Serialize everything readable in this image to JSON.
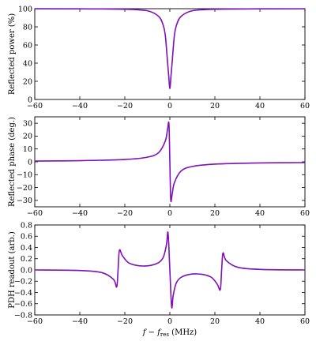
{
  "chart_data": [
    {
      "type": "line",
      "xlabel": "",
      "ylabel": "Reflected power (%)",
      "xlim": [
        -60,
        60
      ],
      "ylim": [
        0,
        100
      ],
      "xticks": [
        "−60",
        "−40",
        "−20",
        "0",
        "20",
        "40",
        "60"
      ],
      "yticks": [
        "0",
        "20",
        "40",
        "60",
        "80",
        "100"
      ],
      "series": [
        {
          "color": "#b000a8",
          "x": [
            -60,
            -40,
            -20,
            -10,
            -5,
            -3,
            -2,
            -1,
            -0.5,
            0,
            0.5,
            1,
            2,
            3,
            5,
            10,
            20,
            40,
            60
          ],
          "values": [
            99.9,
            99.8,
            99.4,
            97.7,
            91.6,
            82.2,
            70.2,
            40.4,
            25.9,
            12.0,
            25.9,
            40.4,
            70.2,
            82.2,
            91.6,
            97.7,
            99.4,
            99.8,
            99.9
          ]
        }
      ]
    },
    {
      "type": "line",
      "xlabel": "",
      "ylabel": "Reflected phase (deg.)",
      "xlim": [
        -60,
        60
      ],
      "ylim": [
        -35,
        35
      ],
      "xticks": [
        "−60",
        "−40",
        "−20",
        "0",
        "20",
        "40",
        "60"
      ],
      "yticks": [
        "−30",
        "−20",
        "−10",
        "0",
        "10",
        "20",
        "30"
      ],
      "series": [
        {
          "color": "#b000a8",
          "x": [
            -60,
            -40,
            -20,
            -10,
            -5,
            -2,
            -1,
            -0.4,
            0,
            0.4,
            1,
            2,
            5,
            10,
            20,
            40,
            60
          ],
          "values": [
            0.6,
            0.9,
            1.8,
            3.6,
            7.1,
            16.3,
            25.5,
            29.5,
            0,
            -29.5,
            -25.5,
            -16.3,
            -7.1,
            -3.6,
            -1.8,
            -0.9,
            -0.6
          ]
        }
      ]
    },
    {
      "type": "line",
      "xlabel": "f − f_res (MHz)",
      "ylabel": "PDH readout (arb.)",
      "xlim": [
        -60,
        60
      ],
      "ylim": [
        -0.8,
        0.8
      ],
      "xticks": [
        "−60",
        "−40",
        "−20",
        "0",
        "20",
        "40",
        "60"
      ],
      "yticks": [
        "−0.8",
        "−0.6",
        "−0.4",
        "−0.2",
        "0.0",
        "0.2",
        "0.4",
        "0.6",
        "0.8"
      ],
      "series": [
        {
          "color": "#b000a8",
          "x": [
            -60,
            -40,
            -30,
            -25,
            -23.6,
            -23,
            -22.4,
            -21,
            -18,
            -12,
            -6,
            -3,
            -1.5,
            -0.8,
            0,
            0.8,
            1.5,
            3,
            6,
            12,
            18,
            21,
            22.4,
            23,
            23.6,
            25,
            30,
            40,
            60
          ],
          "values": [
            0.0,
            -0.01,
            -0.05,
            -0.17,
            -0.3,
            0.0,
            0.35,
            0.25,
            0.12,
            0.07,
            0.11,
            0.22,
            0.45,
            0.66,
            0.0,
            -0.66,
            -0.45,
            -0.22,
            -0.11,
            -0.07,
            -0.12,
            -0.25,
            -0.35,
            0.0,
            0.3,
            0.17,
            0.05,
            0.01,
            0.0
          ]
        }
      ]
    }
  ]
}
